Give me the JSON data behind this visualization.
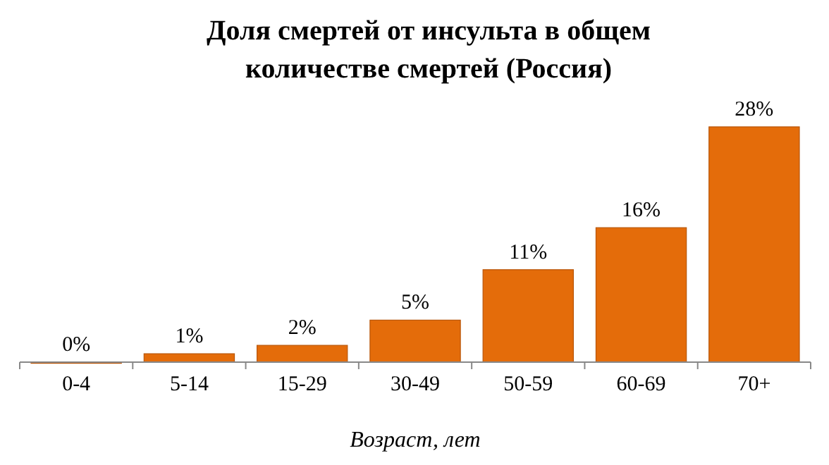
{
  "chart_data": {
    "type": "bar",
    "title": "Доля смертей от инсульта в общем количестве смертей (Россия)",
    "xlabel": "Возраст, лет",
    "categories": [
      "0-4",
      "5-14",
      "15-29",
      "30-49",
      "50-59",
      "60-69",
      "70+"
    ],
    "values": [
      0,
      1,
      2,
      5,
      11,
      16,
      28
    ],
    "value_labels": [
      "0%",
      "1%",
      "2%",
      "5%",
      "11%",
      "16%",
      "28%"
    ],
    "color": "#e46c0a"
  }
}
